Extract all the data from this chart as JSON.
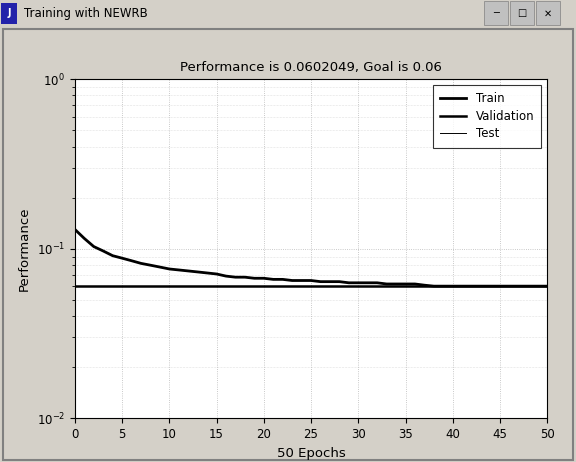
{
  "window_title": "Training with NEWRB",
  "plot_title": "Performance is 0.0602049, Goal is 0.06",
  "xlabel": "50 Epochs",
  "ylabel": "Performance",
  "xlim": [
    0,
    50
  ],
  "ylim_low": 0.01,
  "ylim_high": 1.0,
  "goal": 0.06,
  "legend_labels": [
    "Train",
    "Validation",
    "Test"
  ],
  "outer_bg": "#d4d0c8",
  "plot_bg_color": "#ffffff",
  "grid_color": "#b0b0b0",
  "title_bar_color": "#d4d0c8",
  "train_linewidth": 2.0,
  "goal_linewidth": 1.8,
  "thin_linewidth": 0.7,
  "train_x": [
    0,
    1,
    2,
    3,
    4,
    5,
    6,
    7,
    8,
    9,
    10,
    11,
    12,
    13,
    14,
    15,
    16,
    17,
    18,
    19,
    20,
    21,
    22,
    23,
    24,
    25,
    26,
    27,
    28,
    29,
    30,
    31,
    32,
    33,
    34,
    35,
    36,
    37,
    38,
    39,
    40,
    41,
    42,
    43,
    44,
    45,
    46,
    47,
    48,
    49,
    50
  ],
  "train_y": [
    0.13,
    0.115,
    0.103,
    0.097,
    0.091,
    0.088,
    0.085,
    0.082,
    0.08,
    0.078,
    0.076,
    0.075,
    0.074,
    0.073,
    0.072,
    0.071,
    0.069,
    0.068,
    0.068,
    0.067,
    0.067,
    0.066,
    0.066,
    0.065,
    0.065,
    0.065,
    0.064,
    0.064,
    0.064,
    0.063,
    0.063,
    0.063,
    0.063,
    0.062,
    0.062,
    0.062,
    0.062,
    0.061,
    0.0602049,
    0.0602049,
    0.0602049,
    0.0602049,
    0.0602049,
    0.0602049,
    0.0602049,
    0.0602049,
    0.0602049,
    0.0602049,
    0.0602049,
    0.0602049,
    0.0602049
  ]
}
